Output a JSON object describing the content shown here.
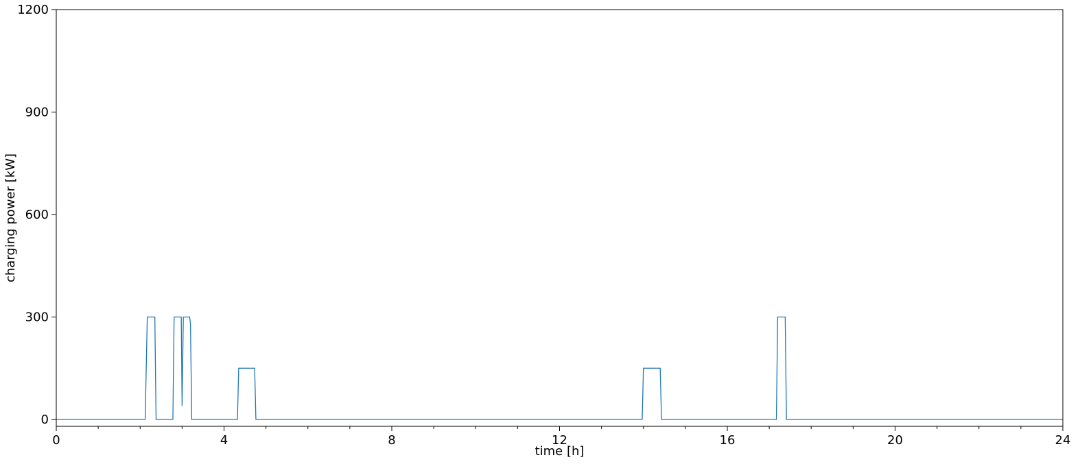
{
  "chart_data": {
    "type": "line",
    "title": "",
    "xlabel": "time [h]",
    "ylabel": "charging power [kW]",
    "xlim": [
      0,
      24
    ],
    "ylim": [
      -20,
      1200
    ],
    "x_ticks": [
      0,
      4,
      8,
      12,
      16,
      20,
      24
    ],
    "x_tick_labels": [
      "0",
      "4",
      "8",
      "12",
      "16",
      "20",
      "24"
    ],
    "y_ticks": [
      0,
      300,
      600,
      900,
      1200
    ],
    "y_tick_labels": [
      "0",
      "300",
      "600",
      "900",
      "1200"
    ],
    "x_minor_step": 1,
    "grid": false,
    "legend": "none",
    "series": [
      {
        "color": "#1f77b4",
        "x": [
          0,
          2.12,
          2.17,
          2.35,
          2.38,
          2.78,
          2.81,
          2.98,
          3.0,
          3.03,
          3.18,
          3.2,
          3.23,
          4.32,
          4.35,
          4.73,
          4.76,
          13.97,
          14.0,
          14.4,
          14.43,
          17.17,
          17.2,
          17.38,
          17.41,
          24
        ],
        "y": [
          0,
          0,
          300,
          300,
          0,
          0,
          300,
          300,
          40,
          300,
          300,
          280,
          0,
          0,
          150,
          150,
          0,
          0,
          150,
          150,
          0,
          0,
          300,
          300,
          0,
          0
        ]
      }
    ]
  }
}
